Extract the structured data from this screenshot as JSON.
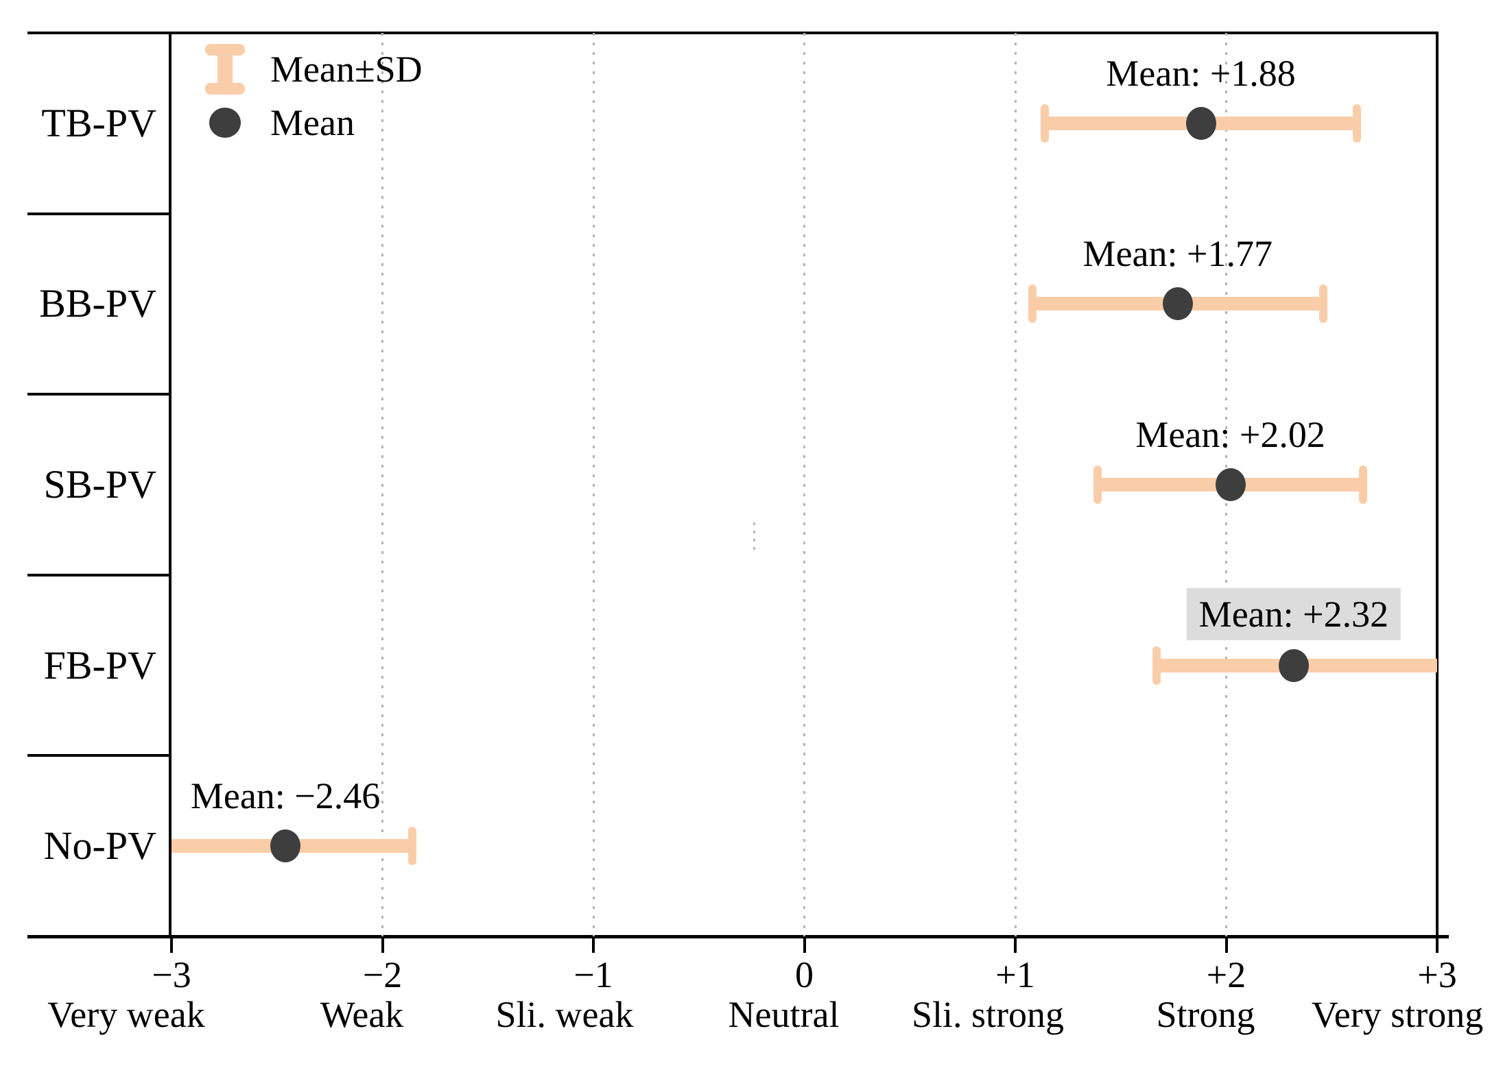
{
  "colors": {
    "errorbar": "#FACDA9",
    "mean_dot": "#3E3E3E",
    "highlight_bg": "#DCDCDC",
    "grid": "#B3B3B3",
    "axis": "#000000",
    "text": "#000000",
    "background": "#FFFFFF"
  },
  "legend": {
    "position": "top-left",
    "items": [
      {
        "icon": "errorbar-icon",
        "label": "Mean±SD"
      },
      {
        "icon": "mean-dot-icon",
        "label": "Mean"
      }
    ]
  },
  "chart_data": {
    "type": "scatter",
    "subtype": "horizontal-errorbar-mean-sd",
    "title": "",
    "xlabel": "",
    "ylabel": "",
    "xlim": [
      -3,
      3
    ],
    "grid": true,
    "gridlines_at": [
      -2,
      -1,
      0,
      1,
      2
    ],
    "legend_position": "top-left",
    "categories": [
      "TB-PV",
      "BB-PV",
      "SB-PV",
      "FB-PV",
      "No-PV"
    ],
    "points": [
      {
        "category": "TB-PV",
        "mean": 1.88,
        "sd": 0.74,
        "bar_low": 1.14,
        "bar_high": 2.62,
        "left_cap": true,
        "right_cap": true,
        "label": "Mean: +1.88",
        "highlighted": false
      },
      {
        "category": "BB-PV",
        "mean": 1.77,
        "sd": 0.69,
        "bar_low": 1.08,
        "bar_high": 2.46,
        "left_cap": true,
        "right_cap": true,
        "label": "Mean: +1.77",
        "highlighted": false
      },
      {
        "category": "SB-PV",
        "mean": 2.02,
        "sd": 0.63,
        "bar_low": 1.39,
        "bar_high": 2.65,
        "left_cap": true,
        "right_cap": true,
        "label": "Mean: +2.02",
        "highlighted": false
      },
      {
        "category": "FB-PV",
        "mean": 2.32,
        "sd": 0.65,
        "bar_low": 1.67,
        "bar_high": 3.0,
        "left_cap": true,
        "right_cap": false,
        "label": "Mean: +2.32",
        "highlighted": true
      },
      {
        "category": "No-PV",
        "mean": -2.46,
        "sd": 0.6,
        "bar_low": -3.0,
        "bar_high": -1.86,
        "left_cap": false,
        "right_cap": true,
        "label": "Mean: −2.46",
        "highlighted": false
      }
    ],
    "x_ticks": [
      {
        "value": -3,
        "label": "−3",
        "desc": "Very weak"
      },
      {
        "value": -2,
        "label": "−2",
        "desc": "Weak"
      },
      {
        "value": -1,
        "label": "−1",
        "desc": "Sli. weak"
      },
      {
        "value": 0,
        "label": "0",
        "desc": "Neutral"
      },
      {
        "value": 1,
        "label": "+1",
        "desc": "Sli. strong"
      },
      {
        "value": 2,
        "label": "+2",
        "desc": "Strong"
      },
      {
        "value": 3,
        "label": "+3",
        "desc": "Very strong"
      }
    ]
  }
}
